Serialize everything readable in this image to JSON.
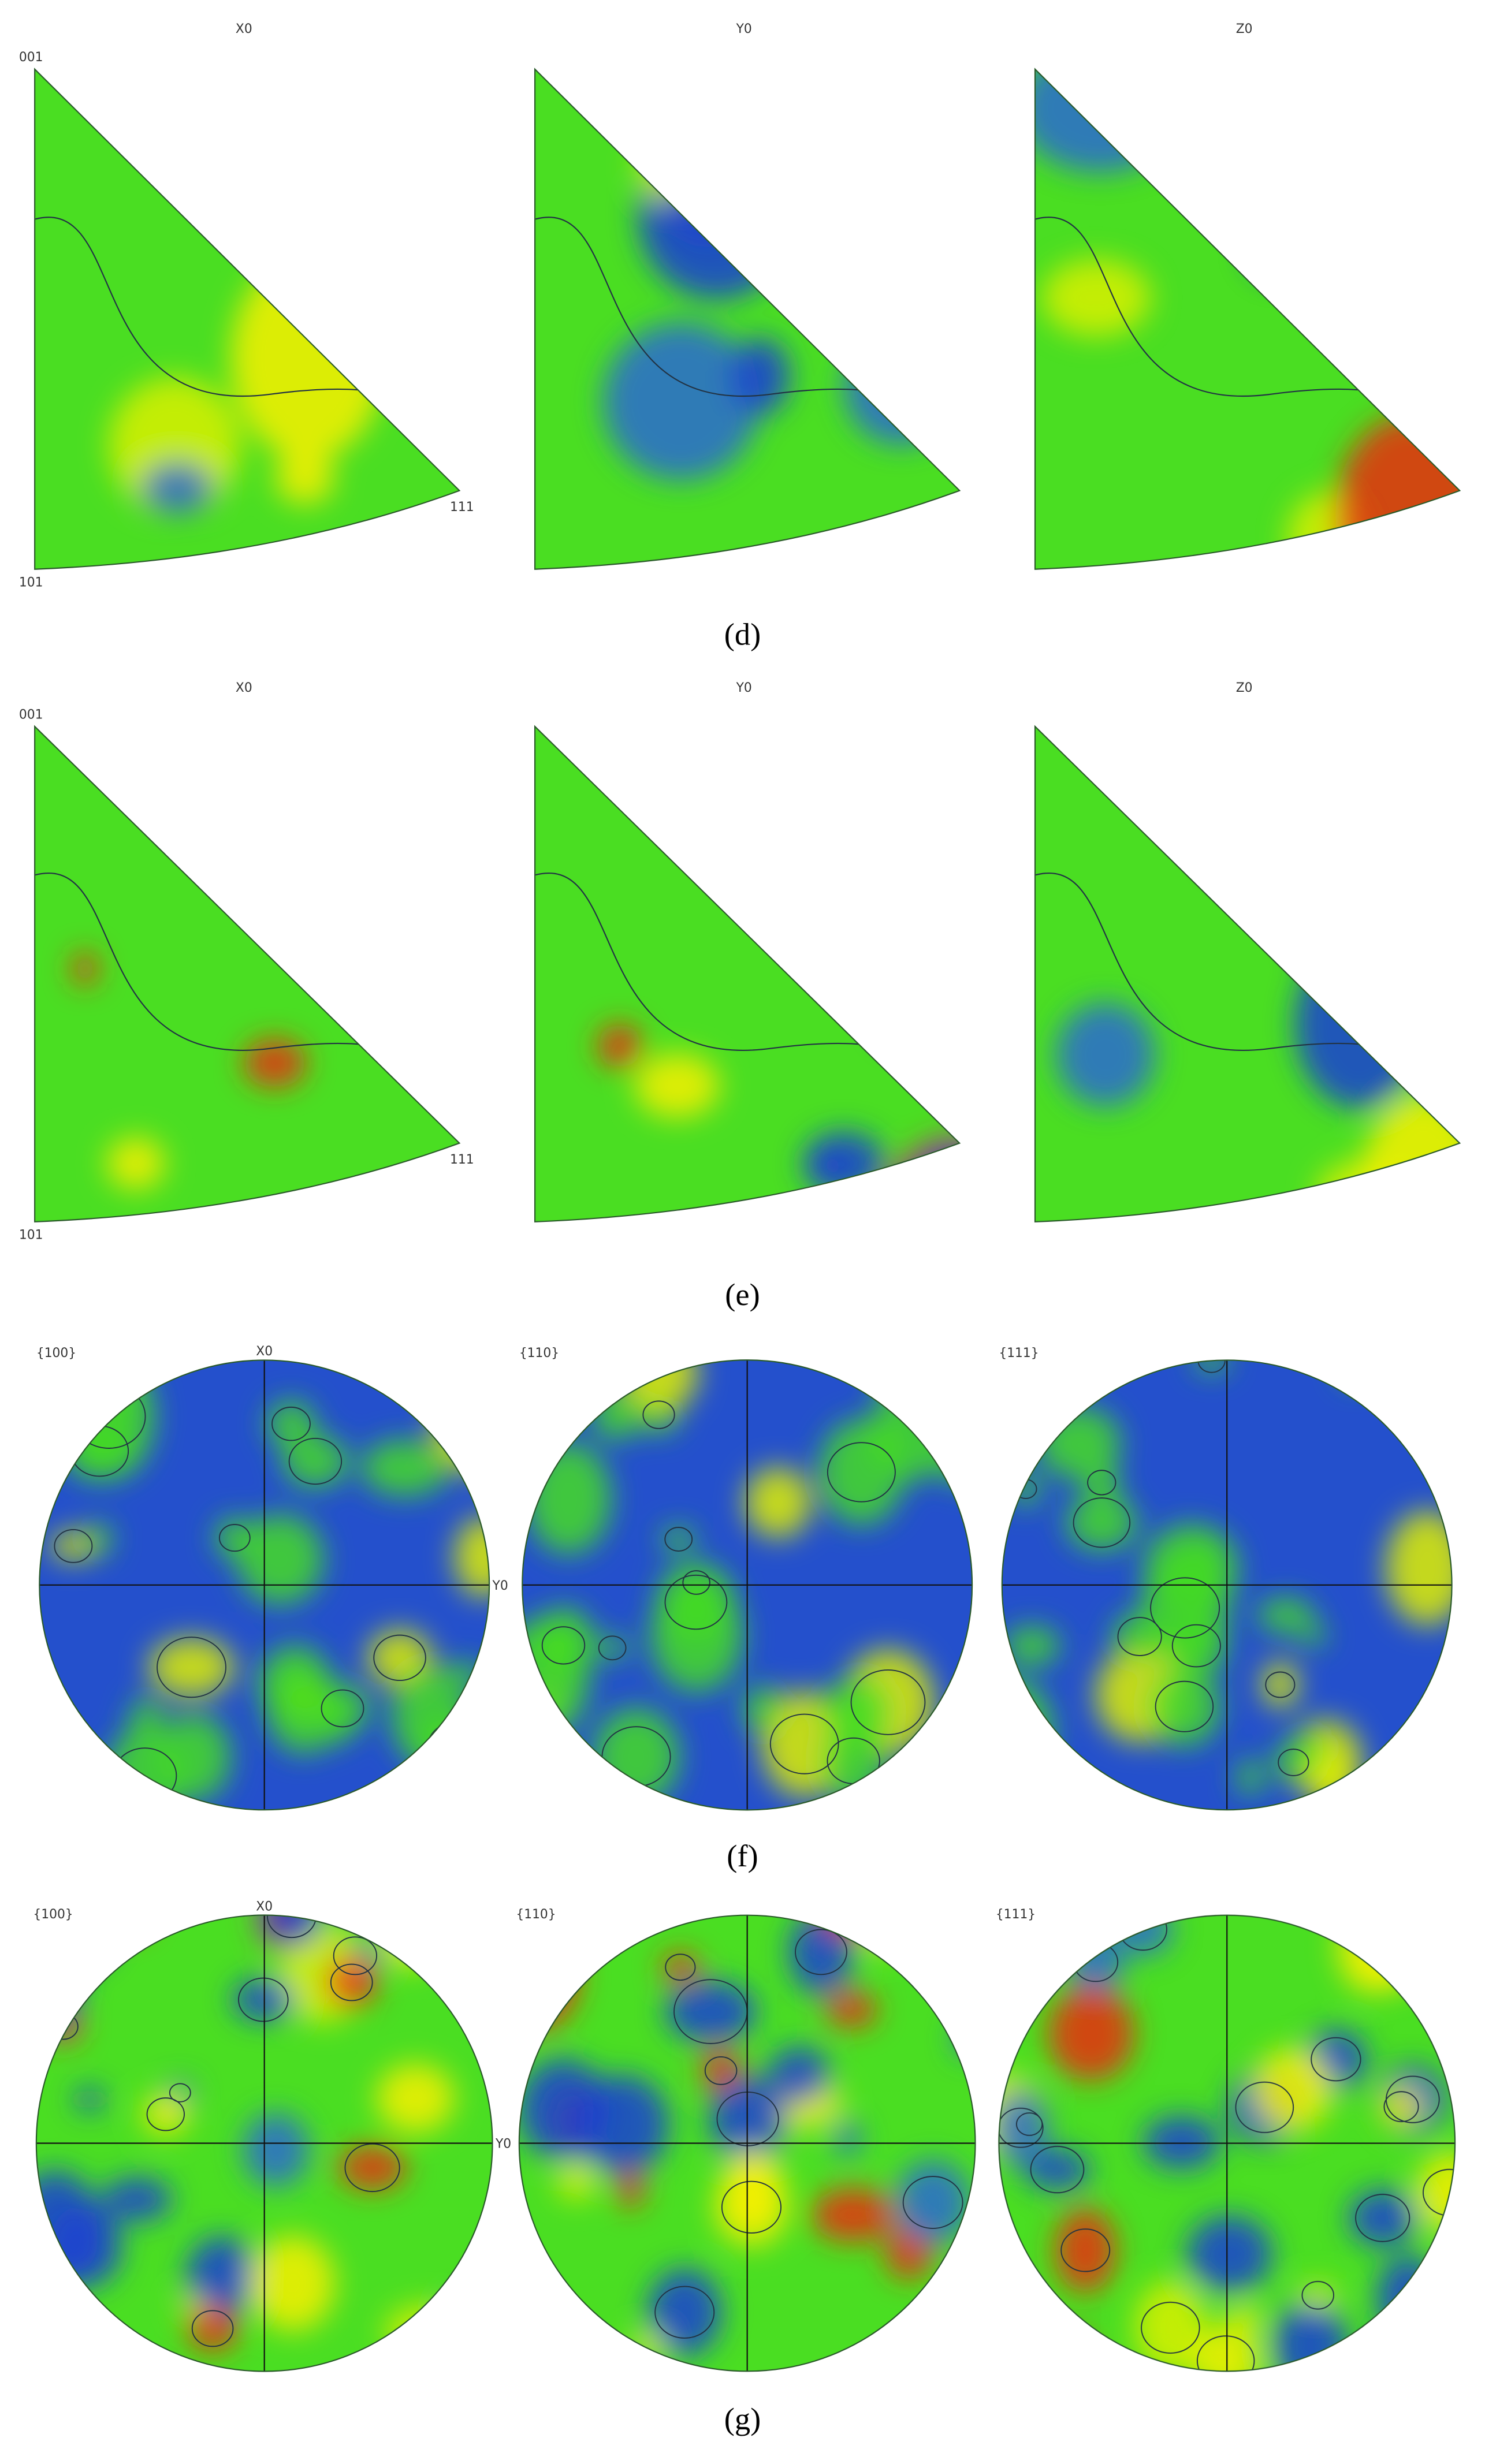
{
  "panels": [
    {
      "label": "(d)",
      "type": "inverse-pole-figure",
      "plots": [
        {
          "title": "X0",
          "corners": [
            "001",
            "101",
            "111"
          ]
        },
        {
          "title": "Y0"
        },
        {
          "title": "Z0"
        }
      ]
    },
    {
      "label": "(e)",
      "type": "inverse-pole-figure",
      "plots": [
        {
          "title": "X0",
          "corners": [
            "001",
            "101",
            "111"
          ]
        },
        {
          "title": "Y0"
        },
        {
          "title": "Z0"
        }
      ]
    },
    {
      "label": "(f)",
      "type": "pole-figure",
      "plots": [
        {
          "title": "{100}",
          "axes": [
            "X0",
            "Y0"
          ]
        },
        {
          "title": "{110}"
        },
        {
          "title": "{111}"
        }
      ]
    },
    {
      "label": "(g)",
      "type": "pole-figure",
      "plots": [
        {
          "title": "{100}",
          "axes": [
            "X0",
            "Y0"
          ]
        },
        {
          "title": "{110}"
        },
        {
          "title": "{111}"
        }
      ]
    }
  ]
}
